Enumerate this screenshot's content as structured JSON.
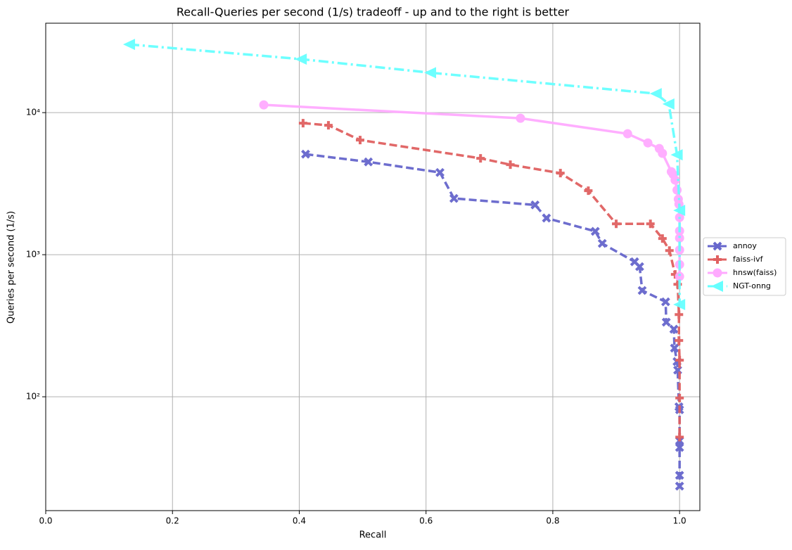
{
  "chart_data": {
    "type": "line",
    "title": "Recall-Queries per second (1/s) tradeoff - up and to the right is better",
    "x_label": "Recall",
    "y_label": "Queries per second (1/s)",
    "xlim": [
      0,
      1.032
    ],
    "ylim": [
      15.8,
      42600
    ],
    "y_scale": "log",
    "grid": true,
    "legend_position": "right",
    "xticks": [
      {
        "value": 0,
        "label": "0.0"
      },
      0.2,
      0.4,
      0.6,
      0.8,
      {
        "value": 1,
        "label": "1.0"
      }
    ],
    "yticks": [
      {
        "value": 100,
        "label": "10²"
      },
      {
        "value": 1000,
        "label": "10³"
      },
      {
        "value": 10000,
        "label": "10⁴"
      }
    ],
    "series": [
      {
        "name": "annoy",
        "color": "#6666cc",
        "marker": "x",
        "linestyle": "dashed",
        "x": [
          0.41,
          0.509,
          0.622,
          0.644,
          0.772,
          0.79,
          0.867,
          0.878,
          0.929,
          0.937,
          0.941,
          0.978,
          0.979,
          0.991,
          0.992,
          0.996,
          0.997,
          0.999,
          1.0,
          1.0,
          1.0,
          1.0,
          1.0
        ],
        "values": [
          5100,
          4500,
          3790,
          2490,
          2240,
          1810,
          1460,
          1200,
          892,
          824,
          560,
          466,
          335,
          299,
          220,
          177,
          154,
          85,
          81,
          49,
          44,
          28,
          23.5
        ]
      },
      {
        "name": "faiss-ivf",
        "color": "#e06060",
        "marker": "plus",
        "linestyle": "dashed",
        "x": [
          0.406,
          0.446,
          0.496,
          0.686,
          0.733,
          0.812,
          0.856,
          0.9,
          0.954,
          0.973,
          0.984,
          0.993,
          0.997,
          0.999,
          0.999,
          1.0,
          1.0,
          1.0
        ],
        "values": [
          8430,
          8150,
          6410,
          4770,
          4300,
          3750,
          2820,
          1650,
          1650,
          1300,
          1070,
          727,
          619,
          379,
          249,
          181,
          98,
          52
        ]
      },
      {
        "name": "hnsw(faiss)",
        "color": "#ffaaff",
        "marker": "circle",
        "linestyle": "solid",
        "x": [
          0.344,
          0.749,
          0.918,
          0.95,
          0.968,
          0.973,
          0.987,
          0.99,
          0.993,
          0.996,
          0.998,
          0.999,
          1.0,
          1.0,
          1.0,
          1.0,
          1.0,
          1.0
        ],
        "values": [
          11340,
          9130,
          7100,
          6120,
          5590,
          5170,
          3840,
          3670,
          3350,
          2850,
          2460,
          2270,
          1830,
          1470,
          1310,
          1080,
          853,
          703
        ]
      },
      {
        "name": "NGT-onng",
        "color": "#66ffff",
        "marker": "triangle-left",
        "linestyle": "dashdot",
        "x": [
          0.132,
          0.403,
          0.607,
          0.963,
          0.983,
          0.996,
          1.0,
          1.0
        ],
        "values": [
          30200,
          23800,
          19100,
          13600,
          11500,
          5050,
          2050,
          446
        ]
      }
    ]
  }
}
